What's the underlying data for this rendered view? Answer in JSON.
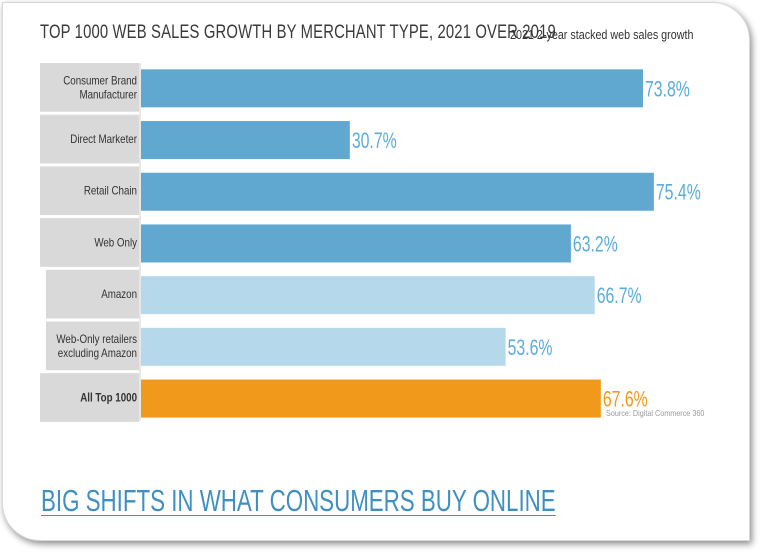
{
  "title": "TOP 1000 WEB SALES GROWTH BY MERCHANT TYPE, 2021 OVER 2019",
  "legend_label": "2021 2-year stacked web sales growth",
  "source": "Source: Digital Commerce 360",
  "bottom_heading": "BIG SHIFTS IN WHAT CONSUMERS BUY ONLINE",
  "colors": {
    "dark_blue": "#61a8d1",
    "light_blue": "#b5d8ea",
    "orange": "#f0991b",
    "label_bg": "#d9d9d9",
    "value_text": "#5aaddb",
    "value_text_orange": "#f0991b"
  },
  "chart_data": {
    "type": "bar",
    "orientation": "horizontal",
    "title": "TOP 1000 WEB SALES GROWTH BY MERCHANT TYPE, 2021 OVER 2019",
    "categories": [
      [
        "Consumer Brand",
        "Manufacturer"
      ],
      [
        "Direct Marketer"
      ],
      [
        "Retail Chain"
      ],
      [
        "Web Only"
      ],
      [
        "Amazon"
      ],
      [
        "Web-Only retailers",
        "excluding Amazon"
      ],
      [
        "All Top 1000"
      ]
    ],
    "values": [
      73.8,
      30.7,
      75.4,
      63.2,
      66.7,
      53.6,
      67.6
    ],
    "value_labels": [
      "73.8%",
      "30.7%",
      "75.4%",
      "63.2%",
      "66.7%",
      "53.6%",
      "67.6%"
    ],
    "bar_colors": [
      "dark_blue",
      "dark_blue",
      "dark_blue",
      "dark_blue",
      "light_blue",
      "light_blue",
      "orange"
    ],
    "series": [
      {
        "name": "2021 2-year stacked web sales growth",
        "values": [
          73.8,
          30.7,
          75.4,
          63.2,
          66.7,
          53.6,
          67.6
        ]
      }
    ],
    "xlim": [
      0,
      100
    ],
    "legend_position": "top-right",
    "grid": false
  }
}
